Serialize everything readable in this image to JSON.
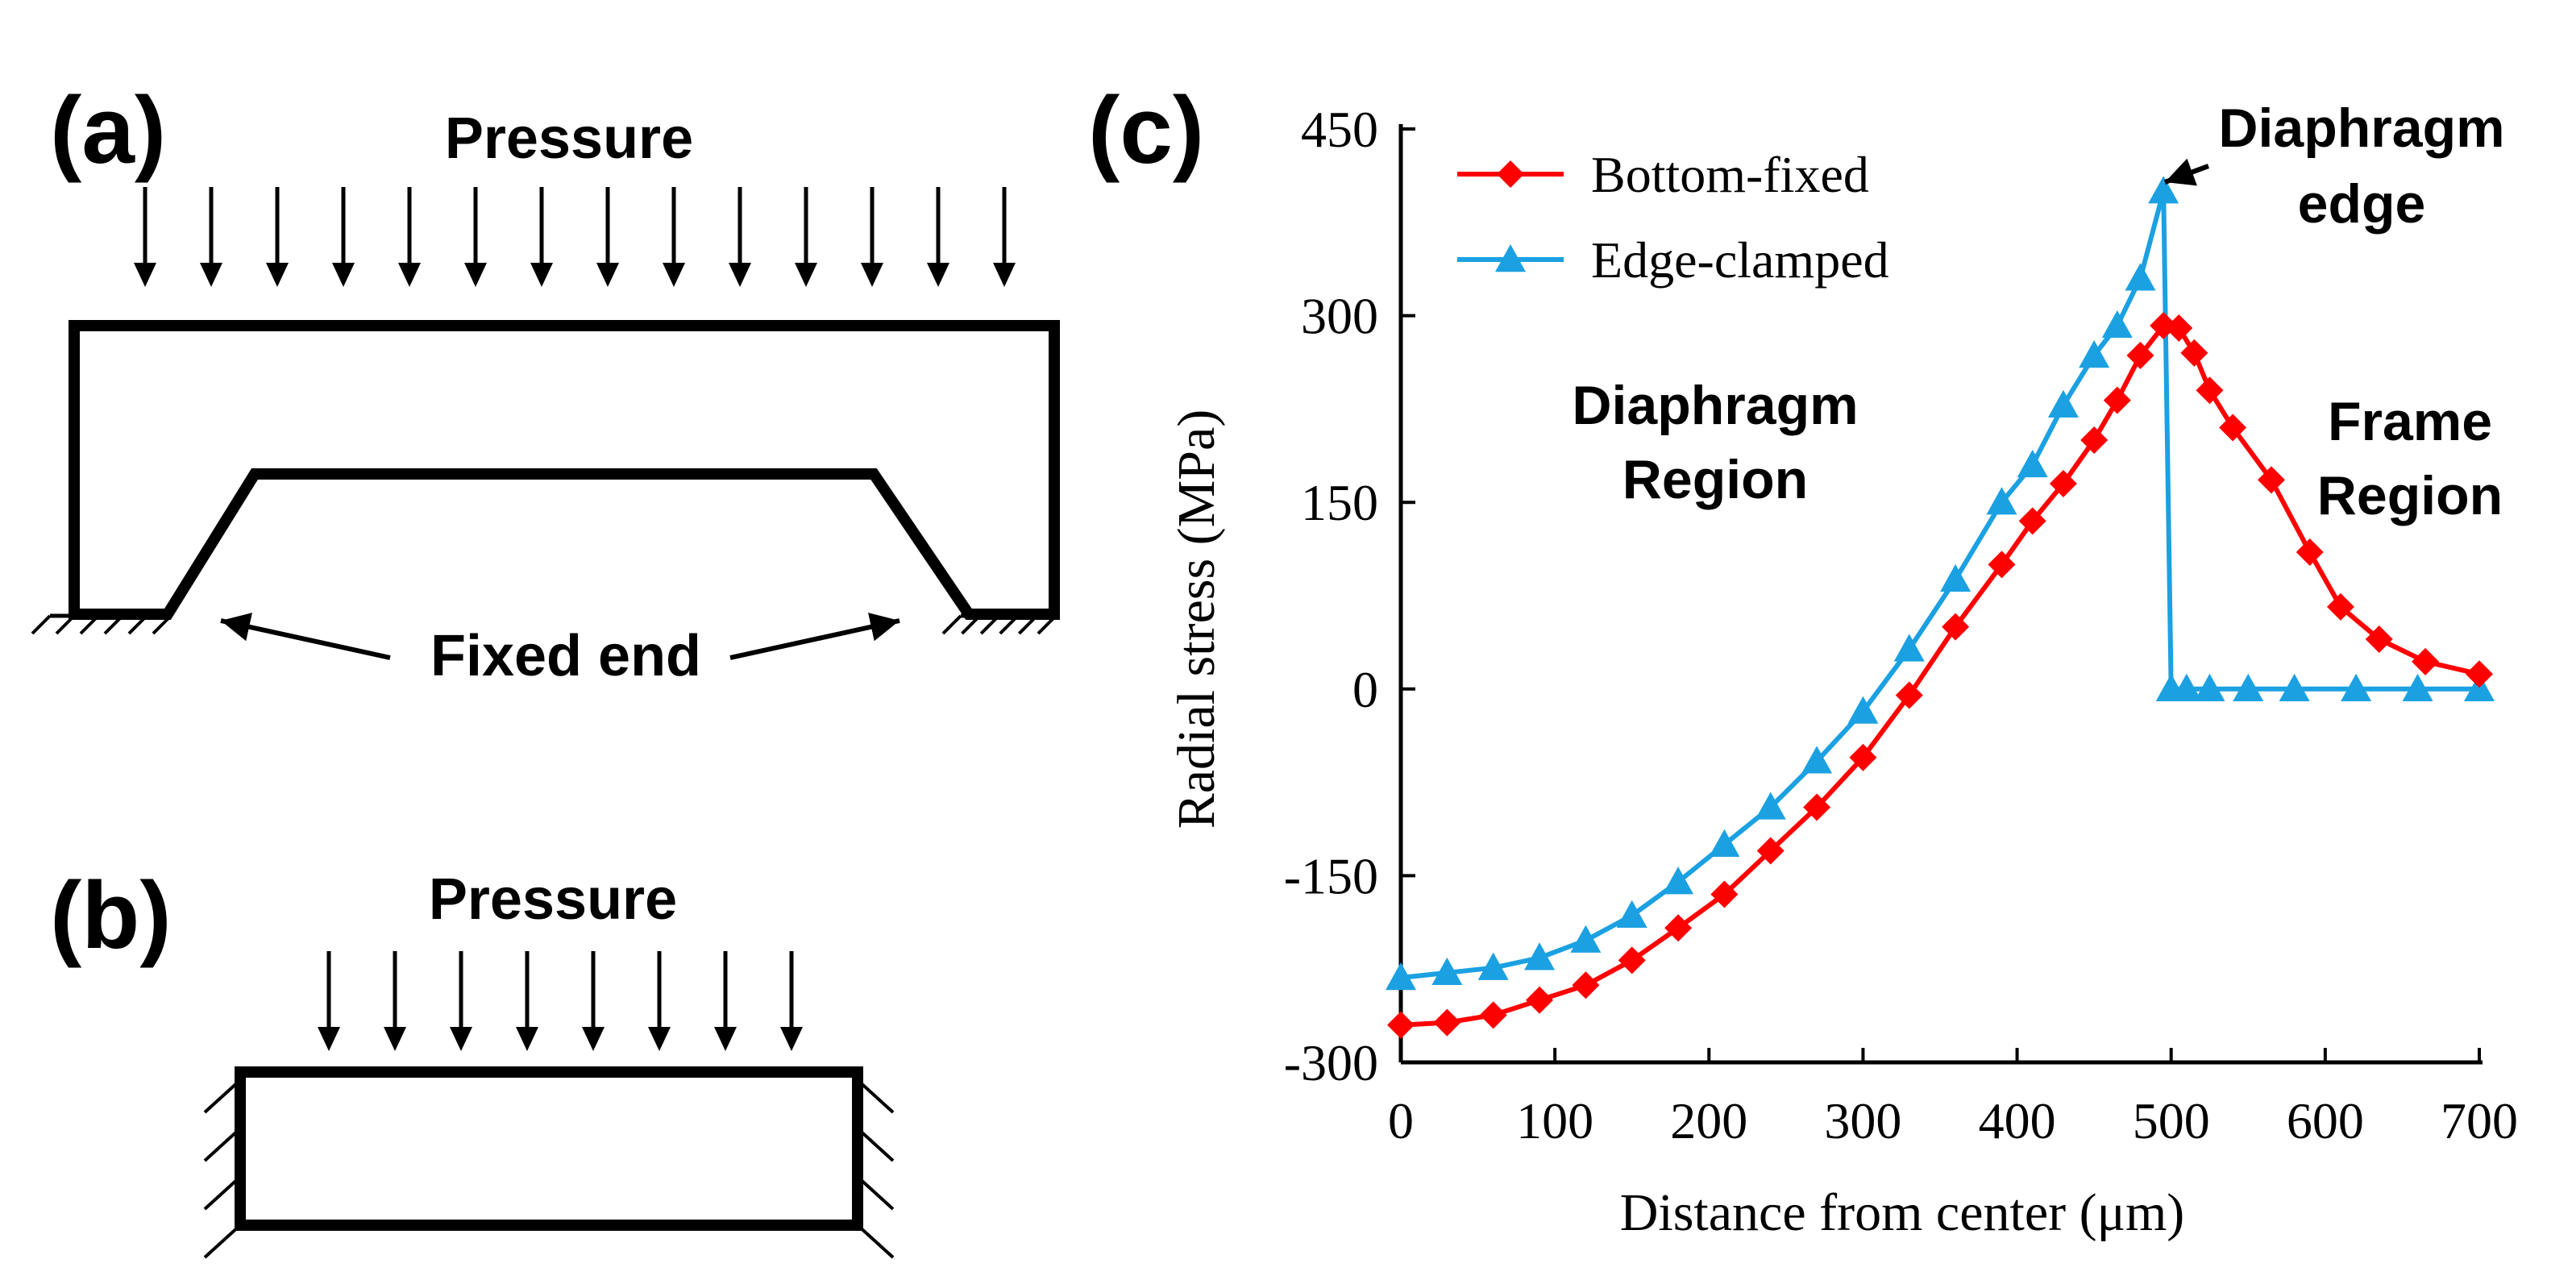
{
  "panel_a": {
    "label": "(a)",
    "pressure_label": "Pressure",
    "fixed_end_label": "Fixed end"
  },
  "panel_b": {
    "label": "(b)",
    "pressure_label": "Pressure"
  },
  "panel_c": {
    "label": "(c)",
    "annotation_edge_line1": "Diaphragm",
    "annotation_edge_line2": "edge",
    "region_diaphragm_line1": "Diaphragm",
    "region_diaphragm_line2": "Region",
    "region_frame_line1": "Frame",
    "region_frame_line2": "Region"
  },
  "colors": {
    "ink": "#000000",
    "bottom_fixed": "#ff0000",
    "edge_clamped": "#1ba1e2"
  },
  "chart_data": {
    "type": "line",
    "xlabel": "Distance from center (μm)",
    "ylabel": "Radial stress (MPa)",
    "xlim": [
      0,
      700
    ],
    "ylim": [
      -300,
      450
    ],
    "xticks": [
      0,
      100,
      200,
      300,
      400,
      500,
      600,
      700
    ],
    "yticks": [
      -300,
      -150,
      0,
      150,
      300,
      450
    ],
    "xtick_labels": [
      "0",
      "100",
      "200",
      "300",
      "400",
      "500",
      "600",
      "700"
    ],
    "ytick_labels": [
      "-300",
      "-150",
      "0",
      "150",
      "300",
      "450"
    ],
    "legend_position": "top-left",
    "series": [
      {
        "name": "Bottom-fixed",
        "color": "#ff0000",
        "marker": "diamond",
        "x": [
          0,
          30,
          60,
          90,
          120,
          150,
          180,
          210,
          240,
          270,
          300,
          330,
          360,
          390,
          410,
          430,
          450,
          465,
          480,
          495,
          505,
          515,
          525,
          540,
          565,
          590,
          610,
          635,
          665,
          700
        ],
        "y": [
          -270,
          -268,
          -262,
          -250,
          -238,
          -218,
          -192,
          -165,
          -130,
          -95,
          -55,
          -5,
          50,
          100,
          135,
          165,
          200,
          232,
          268,
          292,
          290,
          270,
          240,
          210,
          168,
          110,
          66,
          40,
          22,
          12
        ]
      },
      {
        "name": "Edge-clamped",
        "color": "#1ba1e2",
        "marker": "triangle",
        "x": [
          0,
          30,
          60,
          90,
          120,
          150,
          180,
          210,
          240,
          270,
          300,
          330,
          360,
          390,
          410,
          430,
          450,
          465,
          480,
          495,
          500,
          510,
          525,
          550,
          580,
          620,
          660,
          700
        ],
        "y": [
          -232,
          -228,
          -224,
          -216,
          -202,
          -182,
          -155,
          -125,
          -95,
          -58,
          -18,
          32,
          88,
          150,
          180,
          228,
          268,
          292,
          330,
          400,
          0,
          0,
          0,
          0,
          0,
          0,
          0,
          0
        ]
      }
    ]
  }
}
